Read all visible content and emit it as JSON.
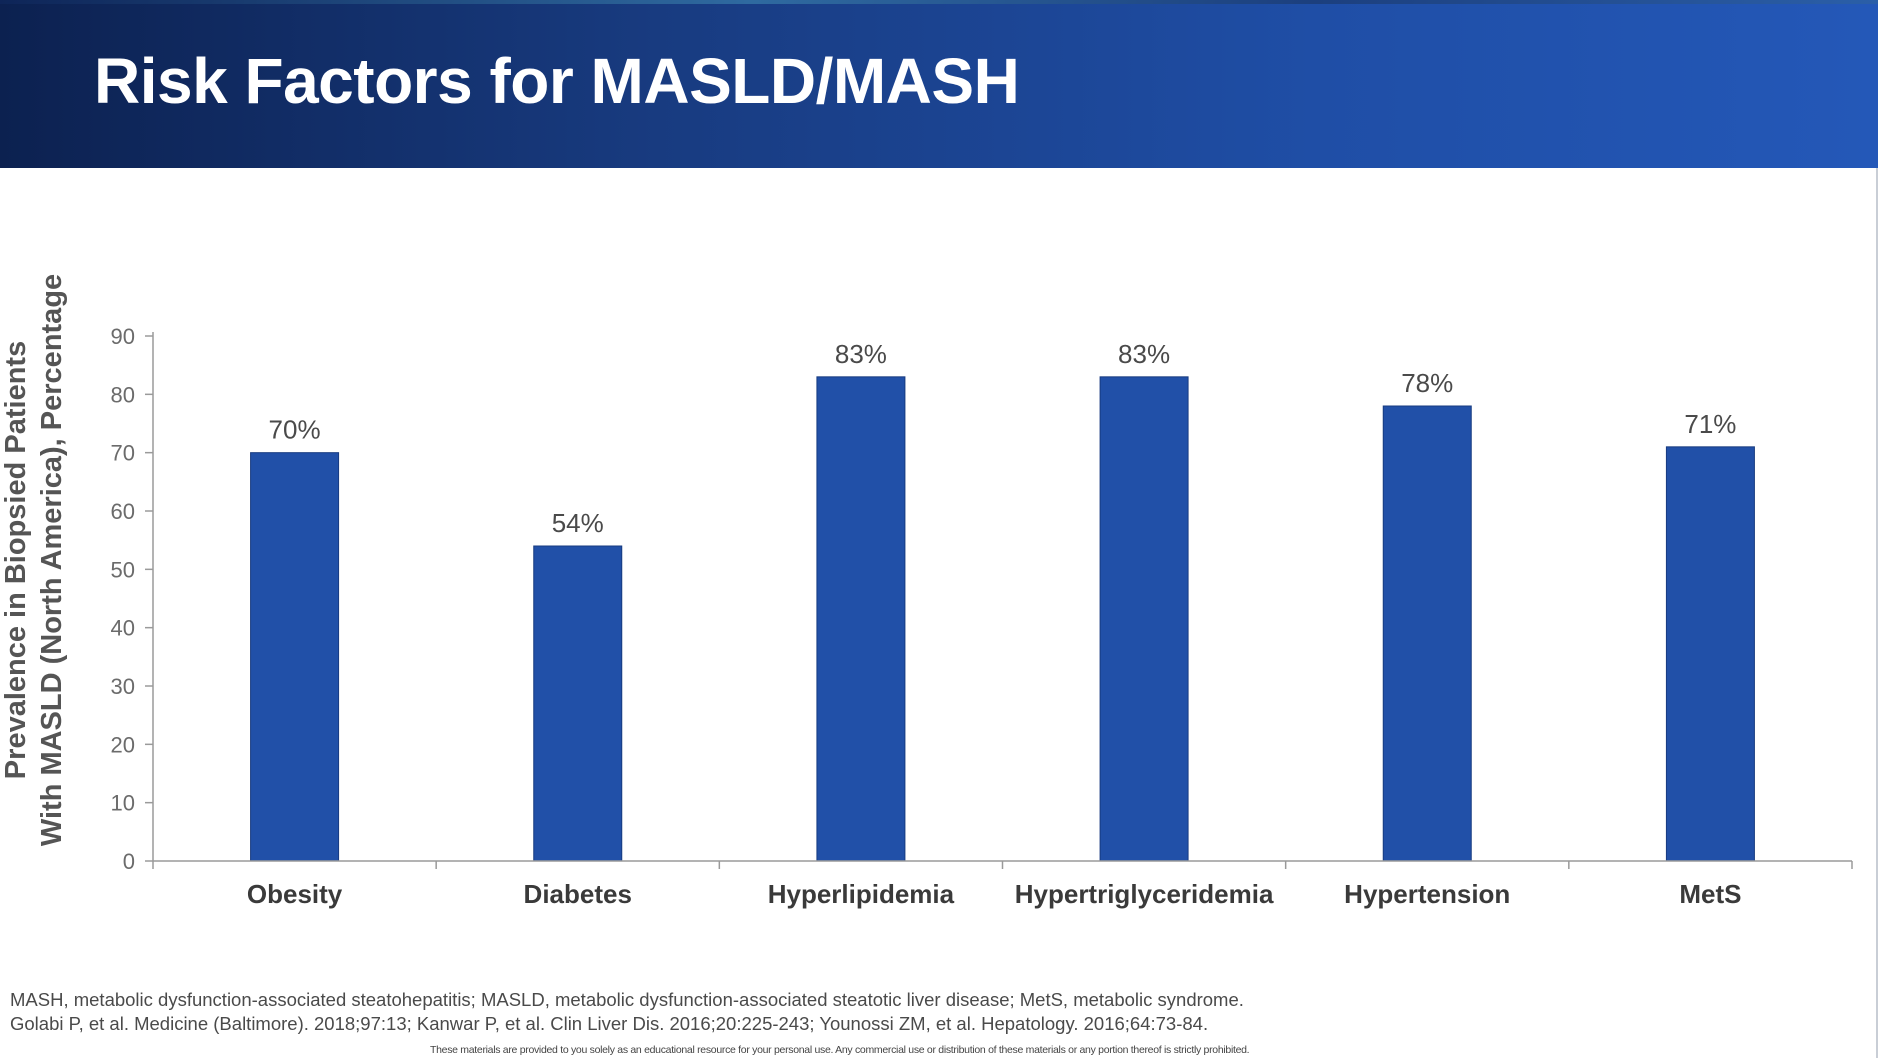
{
  "slide": {
    "title": "Risk Factors for MASLD/MASH",
    "footnote_abbreviations": "MASH, metabolic dysfunction-associated steatohepatitis; MASLD, metabolic dysfunction-associated steatotic liver disease; MetS, metabolic syndrome.",
    "footnote_references": "Golabi P, et al. Medicine (Baltimore). 2018;97:13; Kanwar P, et al. Clin Liver Dis. 2016;20:225-243; Younossi ZM, et al. Hepatology. 2016;64:73-84.",
    "disclaimer": "These materials are provided to you solely as an educational resource for your personal use. Any commercial use or distribution of these materials or any portion thereof is strictly prohibited."
  },
  "colors": {
    "header_start": "#0c2150",
    "header_end": "#2458b8",
    "bar": "#2150a8",
    "bar_edge": "#173b80"
  },
  "chart_data": {
    "type": "bar",
    "title": "",
    "categories": [
      "Obesity",
      "Diabetes",
      "Hyperlipidemia",
      "Hypertriglyceridemia",
      "Hypertension",
      "MetS"
    ],
    "values": [
      70,
      54,
      83,
      83,
      78,
      71
    ],
    "data_labels": [
      "70%",
      "54%",
      "83%",
      "83%",
      "78%",
      "71%"
    ],
    "ylabel_line1": "Prevalence in Biopsied Patients",
    "ylabel_line2": "With MASLD (North America), Percentage",
    "xlabel": "",
    "ylim": [
      0,
      90
    ],
    "yticks": [
      0,
      10,
      20,
      30,
      40,
      50,
      60,
      70,
      80,
      90
    ],
    "grid": false,
    "legend": "none"
  }
}
